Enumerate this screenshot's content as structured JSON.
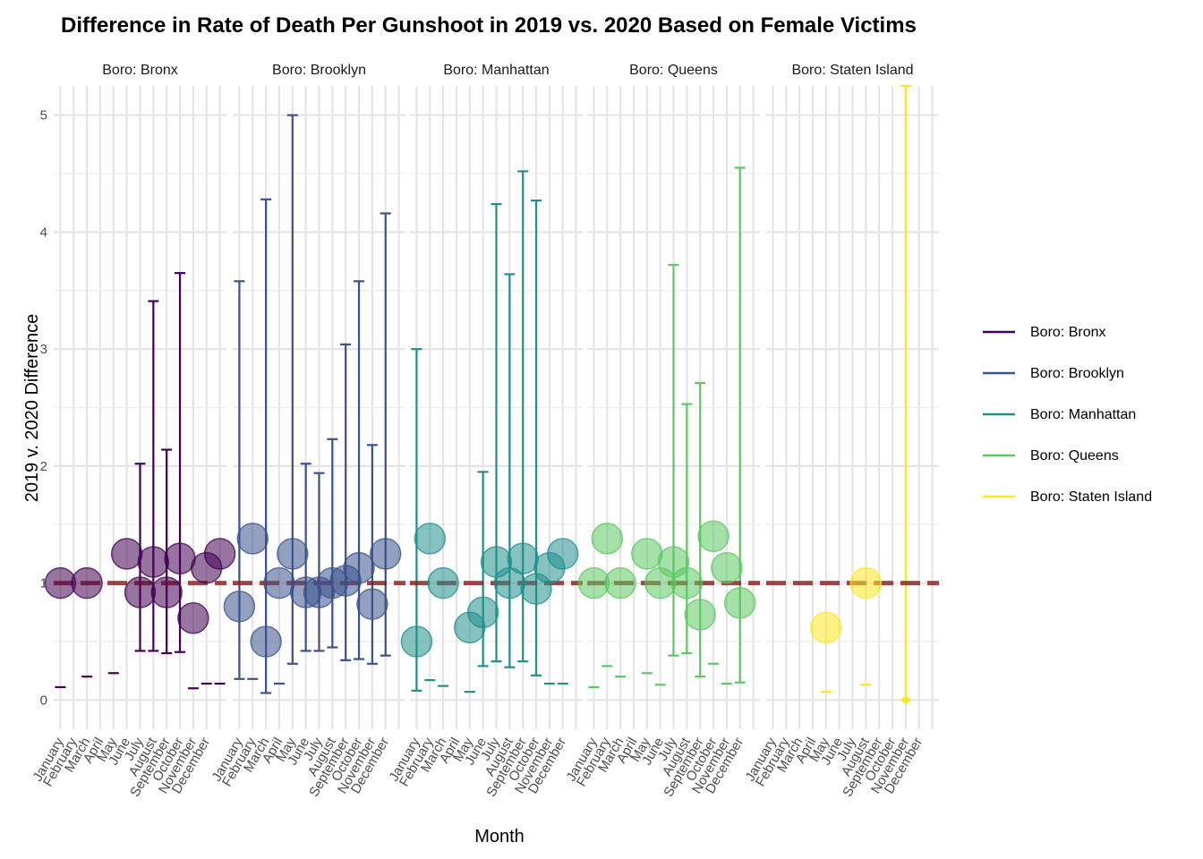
{
  "chart_data": {
    "type": "scatter",
    "title": "Difference in Rate of Death Per Gunshoot in 2019 vs. 2020 Based on Female Victims",
    "xlabel": "Month",
    "ylabel": "2019 v. 2020 Difference",
    "ylim": [
      -0.25,
      5.25
    ],
    "yticks": [
      0,
      1,
      2,
      3,
      4,
      5
    ],
    "reference_line": 1,
    "reference_color": "#8B1A1A",
    "months": [
      "January",
      "February",
      "March",
      "April",
      "May",
      "June",
      "July",
      "August",
      "September",
      "October",
      "November",
      "December"
    ],
    "legend_position": "right",
    "facets": [
      {
        "name": "Boro: Bronx",
        "color": "#440154",
        "points": [
          {
            "month": 1,
            "value": 1.0,
            "low": 0.11,
            "high": null
          },
          {
            "month": 3,
            "value": 1.0,
            "low": 0.2,
            "high": null
          },
          {
            "month": 5,
            "value": null,
            "low": 0.23,
            "high": null
          },
          {
            "month": 6,
            "value": 1.25,
            "low": null,
            "high": null
          },
          {
            "month": 7,
            "value": 0.92,
            "low": 0.42,
            "high": 2.02
          },
          {
            "month": 8,
            "value": 1.18,
            "low": 0.42,
            "high": 3.41
          },
          {
            "month": 9,
            "value": 0.92,
            "low": 0.4,
            "high": 2.14
          },
          {
            "month": 10,
            "value": 1.21,
            "low": 0.41,
            "high": 3.65
          },
          {
            "month": 11,
            "value": 0.7,
            "low": 0.1,
            "high": null
          },
          {
            "month": 12,
            "value": 1.13,
            "low": 0.14,
            "high": null
          },
          {
            "month": 13,
            "value": 1.25,
            "low": 0.14,
            "high": null
          }
        ]
      },
      {
        "name": "Boro: Brooklyn",
        "color": "#3B528B",
        "points": [
          {
            "month": 1,
            "value": 0.8,
            "low": 0.18,
            "high": 3.58
          },
          {
            "month": 2,
            "value": 1.38,
            "low": 0.18,
            "high": null
          },
          {
            "month": 3,
            "value": 0.5,
            "low": 0.06,
            "high": 4.28
          },
          {
            "month": 4,
            "value": 1.0,
            "low": 0.14,
            "high": null
          },
          {
            "month": 5,
            "value": 1.25,
            "low": 0.31,
            "high": 5.0
          },
          {
            "month": 6,
            "value": 0.92,
            "low": 0.42,
            "high": 2.02
          },
          {
            "month": 7,
            "value": 0.92,
            "low": 0.42,
            "high": 1.94
          },
          {
            "month": 8,
            "value": 1.0,
            "low": 0.45,
            "high": 2.23
          },
          {
            "month": 9,
            "value": 1.02,
            "low": 0.34,
            "high": 3.04
          },
          {
            "month": 10,
            "value": 1.13,
            "low": 0.35,
            "high": 3.58
          },
          {
            "month": 11,
            "value": 0.82,
            "low": 0.31,
            "high": 2.18
          },
          {
            "month": 12,
            "value": 1.25,
            "low": 0.38,
            "high": 4.16
          }
        ]
      },
      {
        "name": "Boro: Manhattan",
        "color": "#21908C",
        "points": [
          {
            "month": 1,
            "value": 0.5,
            "low": 0.08,
            "high": 3.0
          },
          {
            "month": 2,
            "value": 1.38,
            "low": 0.17,
            "high": null
          },
          {
            "month": 3,
            "value": 1.0,
            "low": 0.12,
            "high": null
          },
          {
            "month": 5,
            "value": 0.62,
            "low": 0.07,
            "high": null
          },
          {
            "month": 6,
            "value": 0.75,
            "low": 0.29,
            "high": 1.95
          },
          {
            "month": 7,
            "value": 1.18,
            "low": 0.33,
            "high": 4.24
          },
          {
            "month": 8,
            "value": 1.0,
            "low": 0.28,
            "high": 3.64
          },
          {
            "month": 9,
            "value": 1.21,
            "low": 0.33,
            "high": 4.52
          },
          {
            "month": 10,
            "value": 0.95,
            "low": 0.21,
            "high": 4.27
          },
          {
            "month": 11,
            "value": 1.13,
            "low": 0.14,
            "high": null
          },
          {
            "month": 12,
            "value": 1.25,
            "low": 0.14,
            "high": null
          }
        ]
      },
      {
        "name": "Boro: Queens",
        "color": "#5DC863",
        "points": [
          {
            "month": 1,
            "value": 1.0,
            "low": 0.11,
            "high": null
          },
          {
            "month": 2,
            "value": 1.38,
            "low": 0.29,
            "high": null
          },
          {
            "month": 3,
            "value": 1.0,
            "low": 0.2,
            "high": null
          },
          {
            "month": 5,
            "value": 1.25,
            "low": 0.23,
            "high": null
          },
          {
            "month": 6,
            "value": 1.0,
            "low": 0.13,
            "high": null
          },
          {
            "month": 7,
            "value": 1.18,
            "low": 0.38,
            "high": 3.72
          },
          {
            "month": 8,
            "value": 1.0,
            "low": 0.4,
            "high": 2.53
          },
          {
            "month": 9,
            "value": 0.73,
            "low": 0.2,
            "high": 2.71
          },
          {
            "month": 10,
            "value": 1.4,
            "low": 0.31,
            "high": null
          },
          {
            "month": 11,
            "value": 1.13,
            "low": 0.14,
            "high": null
          },
          {
            "month": 12,
            "value": 0.83,
            "low": 0.15,
            "high": 4.55
          }
        ]
      },
      {
        "name": "Boro: Staten Island",
        "color": "#FDE725",
        "points": [
          {
            "month": 5,
            "value": 0.62,
            "low": 0.07,
            "high": null
          },
          {
            "month": 8,
            "value": 1.0,
            "low": 0.13,
            "high": null
          },
          {
            "month": 11,
            "value": 0.0,
            "low": 0.0,
            "high": 5.25
          }
        ]
      }
    ]
  }
}
